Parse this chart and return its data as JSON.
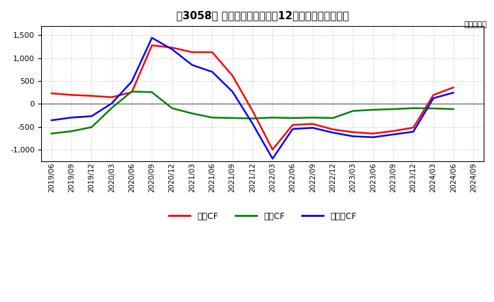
{
  "title": "［3058］ キャッシュフローの12か月移動合計の推移",
  "ylabel": "（百万円）",
  "legend_labels": [
    "営業CF",
    "投資CF",
    "フリーCF"
  ],
  "line_colors": [
    "#ff0000",
    "#008000",
    "#0000ff"
  ],
  "ylim": [
    -1250,
    1700
  ],
  "yticks": [
    -1000,
    -500,
    0,
    500,
    1000,
    1500
  ],
  "dates": [
    "2019/06",
    "2019/09",
    "2019/12",
    "2020/03",
    "2020/06",
    "2020/09",
    "2020/12",
    "2021/03",
    "2021/06",
    "2021/09",
    "2021/12",
    "2022/03",
    "2022/06",
    "2022/09",
    "2022/12",
    "2023/03",
    "2023/06",
    "2023/09",
    "2023/12",
    "2024/03",
    "2024/06",
    "2024/09"
  ],
  "eigyo_cf": [
    230,
    195,
    175,
    145,
    255,
    1280,
    1230,
    1130,
    1130,
    620,
    -150,
    -1000,
    -460,
    -440,
    -560,
    -620,
    -650,
    -595,
    -520,
    195,
    360,
    null
  ],
  "toshi_cf": [
    -650,
    -600,
    -510,
    -90,
    270,
    255,
    -95,
    -210,
    -300,
    -310,
    -320,
    -300,
    -310,
    -300,
    -310,
    -155,
    -130,
    -115,
    -95,
    -100,
    -115,
    null
  ],
  "free_cf": [
    -360,
    -300,
    -270,
    10,
    490,
    1445,
    1195,
    850,
    700,
    270,
    -430,
    -1200,
    -550,
    -525,
    -630,
    -710,
    -730,
    -670,
    -610,
    125,
    245,
    null
  ],
  "background_color": "#ffffff",
  "grid_color": "#bbbbbb"
}
